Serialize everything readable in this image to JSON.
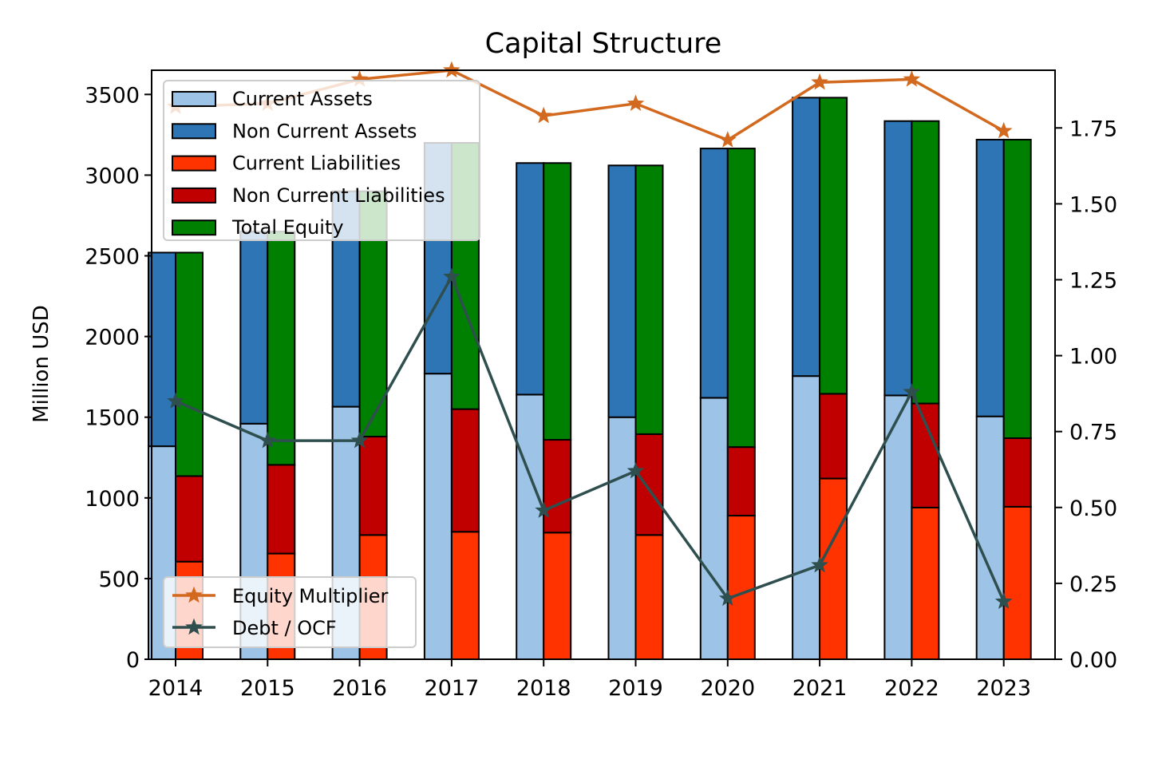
{
  "chart_data": {
    "type": "bar",
    "title": "Capital Structure",
    "ylabel": "Million USD",
    "y2label": "",
    "categories": [
      "2014",
      "2015",
      "2016",
      "2017",
      "2018",
      "2019",
      "2020",
      "2021",
      "2022",
      "2023"
    ],
    "ylim": [
      0,
      3650
    ],
    "y2lim": [
      0,
      1.94
    ],
    "yticks": [
      0,
      500,
      1000,
      1500,
      2000,
      2500,
      3000,
      3500
    ],
    "y2ticks": [
      "0.00",
      "0.25",
      "0.50",
      "0.75",
      "1.00",
      "1.25",
      "1.50",
      "1.75"
    ],
    "assets_stack": [
      {
        "name": "Current Assets",
        "color": "#9dc3e6",
        "values": [
          1320,
          1460,
          1565,
          1770,
          1640,
          1500,
          1620,
          1755,
          1635,
          1505
        ]
      },
      {
        "name": "Non Current Assets",
        "color": "#2e75b6",
        "values": [
          1200,
          1190,
          1335,
          1430,
          1435,
          1560,
          1545,
          1725,
          1700,
          1715
        ]
      }
    ],
    "liabilities_equity_stack": [
      {
        "name": "Current Liabilities",
        "color": "#ff3300",
        "values": [
          605,
          655,
          770,
          790,
          785,
          770,
          890,
          1120,
          940,
          945
        ]
      },
      {
        "name": "Non Current Liabilities",
        "color": "#c00000",
        "values": [
          530,
          550,
          610,
          760,
          575,
          625,
          425,
          525,
          645,
          425
        ]
      },
      {
        "name": "Total Equity",
        "color": "#008000",
        "values": [
          1385,
          1445,
          1520,
          1650,
          1715,
          1665,
          1850,
          1835,
          1750,
          1850
        ]
      }
    ],
    "lines": [
      {
        "name": "Equity Multiplier",
        "color": "#d2691e",
        "values": [
          1.82,
          1.83,
          1.91,
          1.94,
          1.79,
          1.83,
          1.71,
          1.9,
          1.91,
          1.74
        ]
      },
      {
        "name": "Debt / OCF",
        "color": "#2f4f4f",
        "values": [
          0.85,
          0.72,
          0.72,
          1.26,
          0.49,
          0.62,
          0.2,
          0.31,
          0.88,
          0.19
        ]
      }
    ],
    "bar_legend_placement": "upper-left",
    "line_legend_placement": "lower-left",
    "grid": false
  }
}
